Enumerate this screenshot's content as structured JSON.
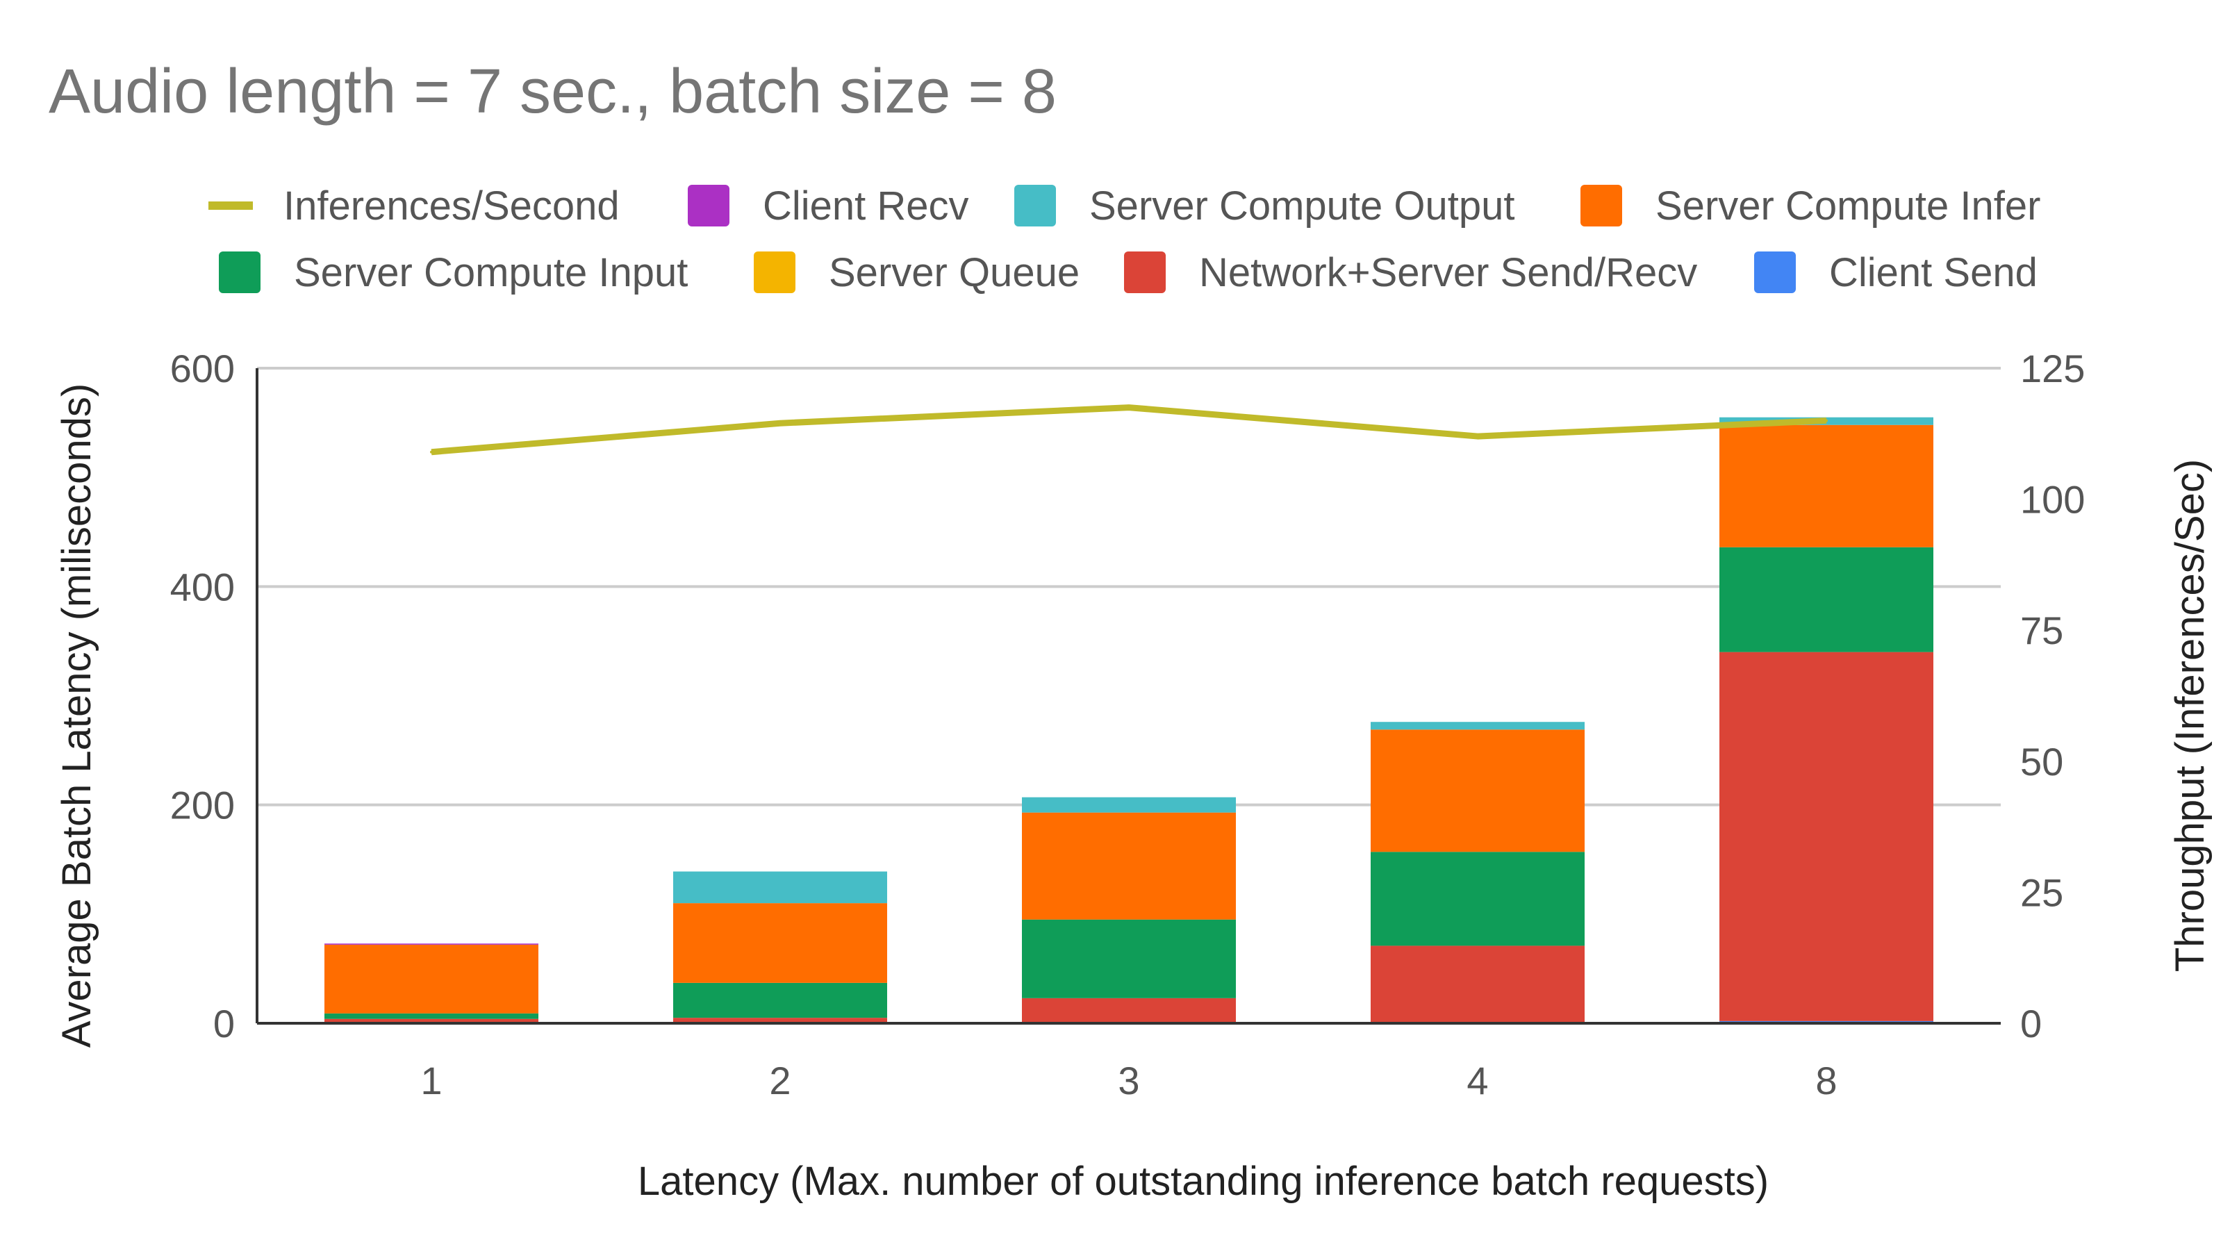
{
  "chart_data": {
    "type": "bar",
    "stacked": true,
    "title": "Audio length = 7 sec., batch size  = 8",
    "xlabel": "Latency (Max. number of outstanding inference batch requests)",
    "ylabel": "Average Batch Latency (miliseconds)",
    "y2label": "Throughput (Inferences/Sec)",
    "categories": [
      "1",
      "2",
      "3",
      "4",
      "8"
    ],
    "ylim": [
      0,
      600
    ],
    "yticks": [
      "0",
      "200",
      "400",
      "600"
    ],
    "y2lim": [
      0,
      125
    ],
    "y2ticks": [
      "0",
      "25",
      "50",
      "75",
      "100",
      "125"
    ],
    "grid": true,
    "legend_position": "top",
    "legend_order": [
      "Inferences/Second",
      "Client Recv",
      "Server Compute Output",
      "Server Compute Infer",
      "Server Compute Input",
      "Server Queue",
      "Network+Server Send/Recv",
      "Client Send"
    ],
    "series": [
      {
        "name": "Client Send",
        "color": "#4285f4",
        "values": [
          1,
          1,
          1,
          1,
          2
        ]
      },
      {
        "name": "Network+Server Send/Recv",
        "color": "#db4437",
        "values": [
          3,
          4,
          22,
          70,
          338
        ]
      },
      {
        "name": "Server Queue",
        "color": "#f4b400",
        "values": [
          0,
          0,
          0,
          0,
          0
        ]
      },
      {
        "name": "Server Compute Input",
        "color": "#0f9d58",
        "values": [
          5,
          32,
          72,
          86,
          96
        ]
      },
      {
        "name": "Server Compute Infer",
        "color": "#ff6d00",
        "values": [
          63,
          73,
          98,
          112,
          112
        ]
      },
      {
        "name": "Server Compute Output",
        "color": "#46bdc6",
        "values": [
          0,
          29,
          14,
          7,
          7
        ]
      },
      {
        "name": "Client Recv",
        "color": "#ab30c4",
        "values": [
          1,
          0,
          0,
          0,
          0
        ]
      }
    ],
    "line_series": {
      "name": "Inferences/Second",
      "color": "#c0ba2a",
      "axis": "right",
      "values": [
        109,
        114.5,
        117.5,
        112,
        115
      ]
    }
  }
}
